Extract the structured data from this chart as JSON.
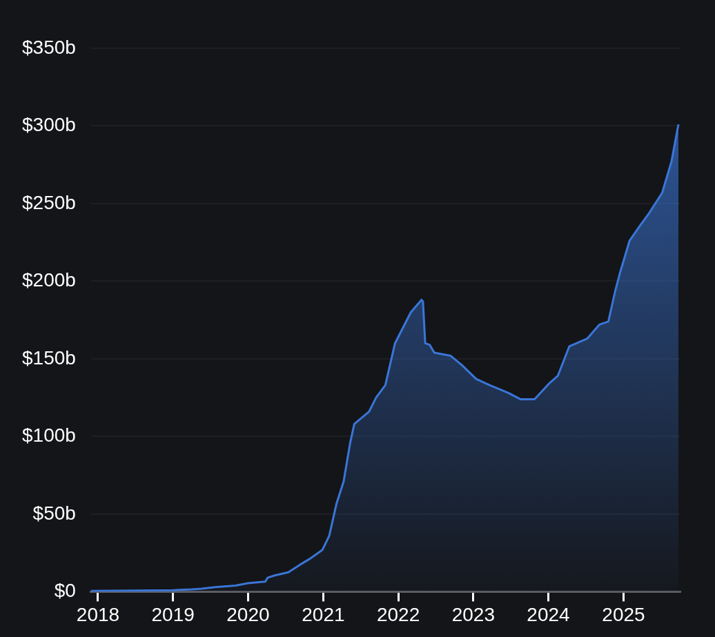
{
  "chart_data": {
    "type": "area",
    "x": [
      "2017-11-28",
      "2019-01-01",
      "2019-04-01",
      "2019-05-20",
      "2019-07-25",
      "2019-11-01",
      "2020-01-01",
      "2020-03-25",
      "2020-04-05",
      "2020-05-10",
      "2020-07-15",
      "2020-09-05",
      "2020-10-25",
      "2020-12-28",
      "2021-01-30",
      "2021-03-07",
      "2021-04-10",
      "2021-05-12",
      "2021-06-01",
      "2021-08-12",
      "2021-09-15",
      "2021-10-30",
      "2021-12-16",
      "2022-03-03",
      "2022-04-24",
      "2022-05-01",
      "2022-05-12",
      "2022-06-03",
      "2022-06-25",
      "2022-09-12",
      "2022-11-06",
      "2023-01-15",
      "2023-03-22",
      "2023-06-21",
      "2023-08-18",
      "2023-10-26",
      "2024-01-04",
      "2024-02-16",
      "2024-04-12",
      "2024-07-08",
      "2024-09-05",
      "2024-10-19",
      "2024-11-22",
      "2024-12-16",
      "2025-01-30",
      "2025-03-18",
      "2025-05-01",
      "2025-07-08",
      "2025-08-22",
      "2025-09-25"
    ],
    "series": [
      {
        "color": "#3a76d8",
        "values": [
          0.5,
          1,
          1.5,
          2,
          3,
          4,
          5.5,
          6.5,
          9,
          10.5,
          12.5,
          17,
          21,
          27,
          36,
          57,
          71,
          96,
          108,
          116,
          125,
          133,
          160,
          180,
          188,
          187,
          160,
          159,
          154,
          152,
          146,
          137,
          133,
          128,
          124,
          124,
          134,
          139,
          158,
          163,
          172,
          174,
          194,
          206,
          226,
          235,
          243,
          257,
          277,
          301
        ]
      }
    ],
    "xlim": [
      "2017-11-28",
      "2025-10-05"
    ],
    "xticks": [
      "2018",
      "2019",
      "2020",
      "2021",
      "2022",
      "2023",
      "2024",
      "2025"
    ],
    "ylim": [
      0,
      350
    ],
    "yticks": [
      {
        "value": 0,
        "label": "$0"
      },
      {
        "value": 50,
        "label": "$50b"
      },
      {
        "value": 100,
        "label": "$100b"
      },
      {
        "value": 150,
        "label": "$150b"
      },
      {
        "value": 200,
        "label": "$200b"
      },
      {
        "value": 250,
        "label": "$250b"
      },
      {
        "value": 300,
        "label": "$300b"
      },
      {
        "value": 350,
        "label": "$350b"
      }
    ],
    "grid": "y"
  }
}
